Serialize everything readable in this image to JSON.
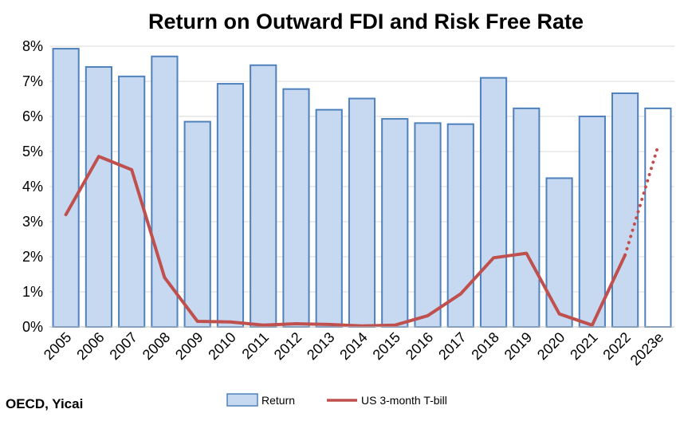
{
  "chart_data": {
    "type": "bar",
    "title": "Return on Outward FDI and Risk Free Rate",
    "source": "OECD, Yicai",
    "categories": [
      "2005",
      "2006",
      "2007",
      "2008",
      "2009",
      "2010",
      "2011",
      "2012",
      "2013",
      "2014",
      "2015",
      "2016",
      "2017",
      "2018",
      "2019",
      "2020",
      "2021",
      "2022",
      "2023e"
    ],
    "series": [
      {
        "name": "Return",
        "type": "bar",
        "color": "#c6d9f1",
        "border_color": "#4f81bd",
        "estimate_fill": "#ffffff",
        "values": [
          7.93,
          7.41,
          7.14,
          7.71,
          5.85,
          6.93,
          7.46,
          6.78,
          6.19,
          6.51,
          5.93,
          5.81,
          5.78,
          7.1,
          6.23,
          4.24,
          6.0,
          6.66,
          6.23
        ]
      },
      {
        "name": "US 3-month T-bill",
        "type": "line",
        "color": "#c0504d",
        "dotted_last_segment": true,
        "values": [
          3.2,
          4.86,
          4.48,
          1.41,
          0.16,
          0.14,
          0.05,
          0.09,
          0.07,
          0.03,
          0.05,
          0.32,
          0.94,
          1.97,
          2.1,
          0.37,
          0.05,
          2.05,
          5.15
        ]
      }
    ],
    "ylim": [
      0,
      8
    ],
    "yticks": [
      "0%",
      "1%",
      "2%",
      "3%",
      "4%",
      "5%",
      "6%",
      "7%",
      "8%"
    ],
    "ytick_values": [
      0,
      1,
      2,
      3,
      4,
      5,
      6,
      7,
      8
    ],
    "grid": true,
    "legend_position": "bottom",
    "xlabel": "",
    "ylabel": ""
  }
}
